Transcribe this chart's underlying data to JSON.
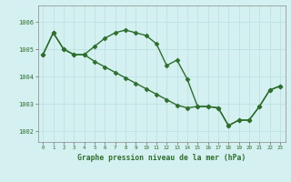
{
  "title": "Graphe pression niveau de la mer (hPa)",
  "background_color": "#d4f0f0",
  "grid_color": "#b8dede",
  "line_color": "#2d6e2d",
  "x_labels": [
    "0",
    "1",
    "2",
    "3",
    "4",
    "5",
    "6",
    "7",
    "8",
    "9",
    "10",
    "11",
    "12",
    "13",
    "14",
    "15",
    "16",
    "17",
    "18",
    "19",
    "20",
    "21",
    "22",
    "23"
  ],
  "ylim": [
    1001.6,
    1006.6
  ],
  "yticks": [
    1002,
    1003,
    1004,
    1005,
    1006
  ],
  "series1_x": [
    0,
    1,
    2,
    3,
    4,
    5,
    6,
    7,
    8,
    9,
    10,
    11,
    12,
    13,
    14,
    15,
    16,
    17,
    18,
    19,
    20,
    21,
    22,
    23
  ],
  "series1_y": [
    1004.8,
    1005.6,
    1005.0,
    1004.8,
    1004.8,
    1005.1,
    1005.4,
    1005.6,
    1005.7,
    1005.6,
    1005.5,
    1005.2,
    1004.4,
    1004.6,
    1003.9,
    1002.9,
    1002.9,
    1002.85,
    1002.2,
    1002.4,
    1002.4,
    1002.9,
    1003.5,
    1003.65
  ],
  "series2_x": [
    0,
    1,
    2,
    3,
    4,
    5,
    6,
    7,
    8,
    9,
    10,
    11,
    12,
    13,
    14,
    15,
    16,
    17,
    18,
    19,
    20,
    21,
    22,
    23
  ],
  "series2_y": [
    1004.8,
    1005.6,
    1005.0,
    1004.8,
    1004.8,
    1004.55,
    1004.35,
    1004.15,
    1003.95,
    1003.75,
    1003.55,
    1003.35,
    1003.15,
    1002.95,
    1002.85,
    1002.9,
    1002.9,
    1002.85,
    1002.2,
    1002.4,
    1002.4,
    1002.9,
    1003.5,
    1003.65
  ],
  "marker": "D",
  "marker_size": 2.5,
  "linewidth": 1.0
}
